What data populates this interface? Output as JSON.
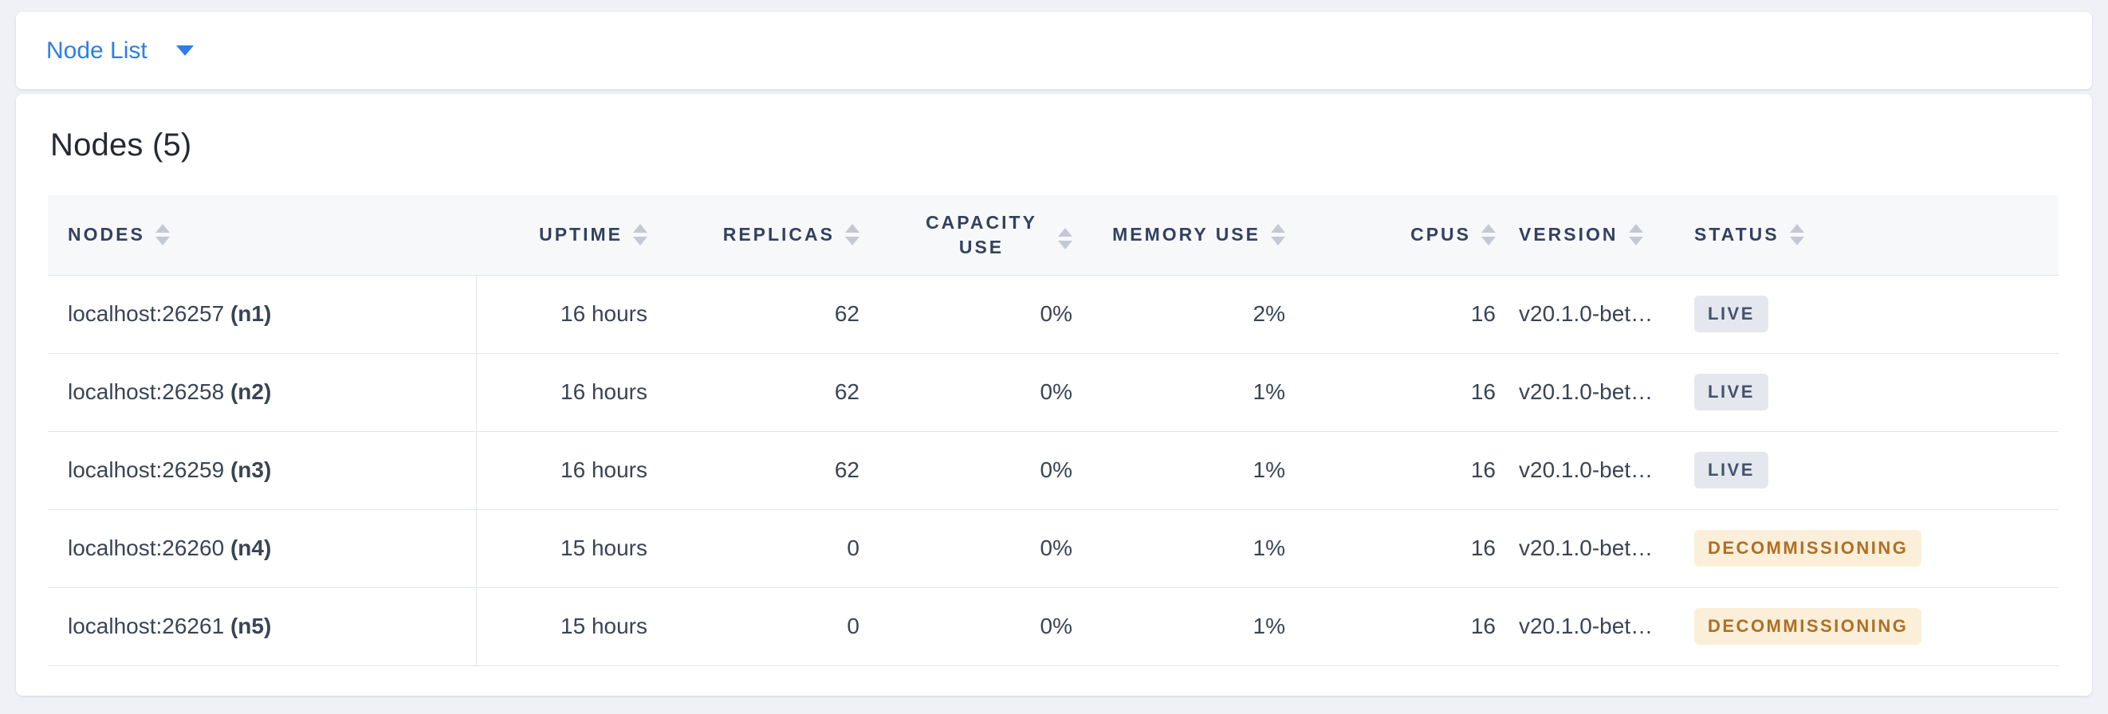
{
  "view_selector": {
    "label": "Node List"
  },
  "panel": {
    "title": "Nodes (5)"
  },
  "table": {
    "columns": [
      {
        "id": "nodes",
        "label": "NODES",
        "align": "left",
        "sortable": true
      },
      {
        "id": "uptime",
        "label": "UPTIME",
        "align": "right",
        "sortable": true
      },
      {
        "id": "replicas",
        "label": "REPLICAS",
        "align": "right",
        "sortable": true
      },
      {
        "id": "capacity_use",
        "label": "CAPACITY USE",
        "align": "right",
        "sortable": true,
        "wrap": true
      },
      {
        "id": "memory_use",
        "label": "MEMORY USE",
        "align": "right",
        "sortable": true
      },
      {
        "id": "cpus",
        "label": "CPUS",
        "align": "right",
        "sortable": true
      },
      {
        "id": "version",
        "label": "VERSION",
        "align": "left",
        "sortable": true
      },
      {
        "id": "status",
        "label": "STATUS",
        "align": "left",
        "sortable": true
      }
    ],
    "rows": [
      {
        "address": "localhost:26257",
        "node_id": "(n1)",
        "uptime": "16 hours",
        "replicas": "62",
        "capacity_use": "0%",
        "memory_use": "2%",
        "cpus": "16",
        "version": "v20.1.0-bet…",
        "status": "LIVE",
        "status_variant": "live"
      },
      {
        "address": "localhost:26258",
        "node_id": "(n2)",
        "uptime": "16 hours",
        "replicas": "62",
        "capacity_use": "0%",
        "memory_use": "1%",
        "cpus": "16",
        "version": "v20.1.0-bet…",
        "status": "LIVE",
        "status_variant": "live"
      },
      {
        "address": "localhost:26259",
        "node_id": "(n3)",
        "uptime": "16 hours",
        "replicas": "62",
        "capacity_use": "0%",
        "memory_use": "1%",
        "cpus": "16",
        "version": "v20.1.0-bet…",
        "status": "LIVE",
        "status_variant": "live"
      },
      {
        "address": "localhost:26260",
        "node_id": "(n4)",
        "uptime": "15 hours",
        "replicas": "0",
        "capacity_use": "0%",
        "memory_use": "1%",
        "cpus": "16",
        "version": "v20.1.0-bet…",
        "status": "DECOMMISSIONING",
        "status_variant": "decommissioning"
      },
      {
        "address": "localhost:26261",
        "node_id": "(n5)",
        "uptime": "15 hours",
        "replicas": "0",
        "capacity_use": "0%",
        "memory_use": "1%",
        "cpus": "16",
        "version": "v20.1.0-bet…",
        "status": "DECOMMISSIONING",
        "status_variant": "decommissioning"
      }
    ]
  },
  "colors": {
    "accent_blue": "#2f7de8",
    "page_background": "#eff1f6",
    "card_background": "#ffffff",
    "header_text": "#33415f",
    "body_text": "#394455",
    "row_border": "#e3e6ec",
    "header_background": "#f7f8fa",
    "sort_icon": "#c3c9d4",
    "live_badge_background": "#e4e7ee",
    "live_badge_text": "#44526b",
    "decommissioning_badge_background": "#fcefd9",
    "decommissioning_badge_text": "#b06e24"
  }
}
